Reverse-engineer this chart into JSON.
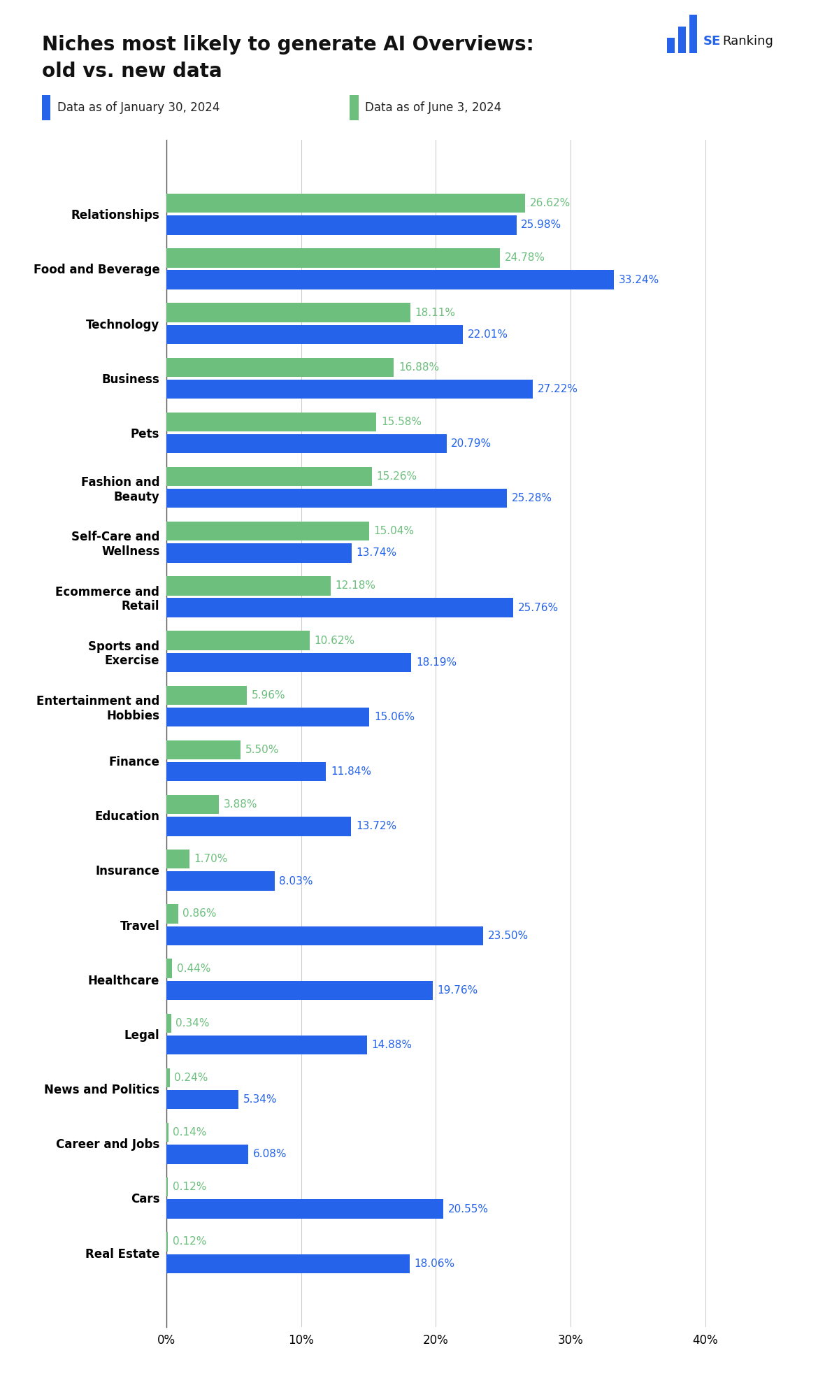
{
  "title_line1": "Niches most likely to generate AI Overviews:",
  "title_line2": "old vs. new data",
  "legend_label_blue": "Data as of January 30, 2024",
  "legend_label_green": "Data as of June 3, 2024",
  "color_blue": "#2563EB",
  "color_green": "#6DBF7E",
  "categories": [
    "Relationships",
    "Food and Beverage",
    "Technology",
    "Business",
    "Pets",
    "Fashion and\nBeauty",
    "Self-Care and\nWellness",
    "Ecommerce and\nRetail",
    "Sports and\nExercise",
    "Entertainment and\nHobbies",
    "Finance",
    "Education",
    "Insurance",
    "Travel",
    "Healthcare",
    "Legal",
    "News and Politics",
    "Career and Jobs",
    "Cars",
    "Real Estate"
  ],
  "values_blue": [
    25.98,
    33.24,
    22.01,
    27.22,
    20.79,
    25.28,
    13.74,
    25.76,
    18.19,
    15.06,
    11.84,
    13.72,
    8.03,
    23.5,
    19.76,
    14.88,
    5.34,
    6.08,
    20.55,
    18.06
  ],
  "values_green": [
    26.62,
    24.78,
    18.11,
    16.88,
    15.58,
    15.26,
    15.04,
    12.18,
    10.62,
    5.96,
    5.5,
    3.88,
    1.7,
    0.86,
    0.44,
    0.34,
    0.24,
    0.14,
    0.12,
    0.12
  ],
  "xlim": [
    0,
    42
  ],
  "xticks": [
    0,
    10,
    20,
    30,
    40
  ],
  "xticklabels": [
    "0%",
    "10%",
    "20%",
    "30%",
    "40%"
  ],
  "background_color": "#ffffff",
  "grid_color": "#cccccc",
  "title_fontsize": 20,
  "label_fontsize": 12,
  "tick_fontsize": 12,
  "bar_label_fontsize": 11,
  "legend_fontsize": 12,
  "figsize": [
    11.9,
    19.98
  ],
  "dpi": 100
}
